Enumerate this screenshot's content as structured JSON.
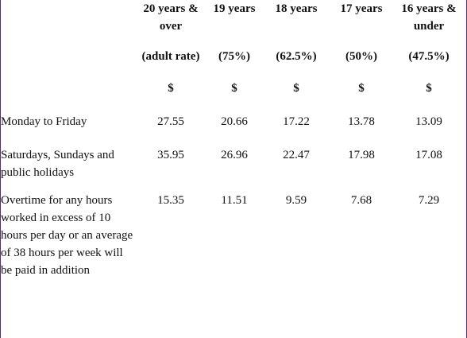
{
  "headers": {
    "age_groups": [
      "20 years & over",
      "19 years",
      "18 years",
      "17 years",
      "16 years & under"
    ],
    "rates": [
      "(adult rate)",
      "(75%)",
      "(62.5%)",
      "(50%)",
      "(47.5%)"
    ],
    "currency": [
      "$",
      "$",
      "$",
      "$",
      "$"
    ]
  },
  "rows": [
    {
      "label": "Monday to Friday",
      "values": [
        "27.55",
        "20.66",
        "17.22",
        "13.78",
        "13.09"
      ]
    },
    {
      "label": "Saturdays, Sundays and public holidays",
      "values": [
        "35.95",
        "26.96",
        "22.47",
        "17.98",
        "17.08"
      ]
    },
    {
      "label": "Overtime for any hours worked in excess of 10 hours per day or an average of 38 hours per week will be paid in addition",
      "values": [
        "15.35",
        "11.51",
        "9.59",
        "7.68",
        "7.29"
      ]
    }
  ]
}
